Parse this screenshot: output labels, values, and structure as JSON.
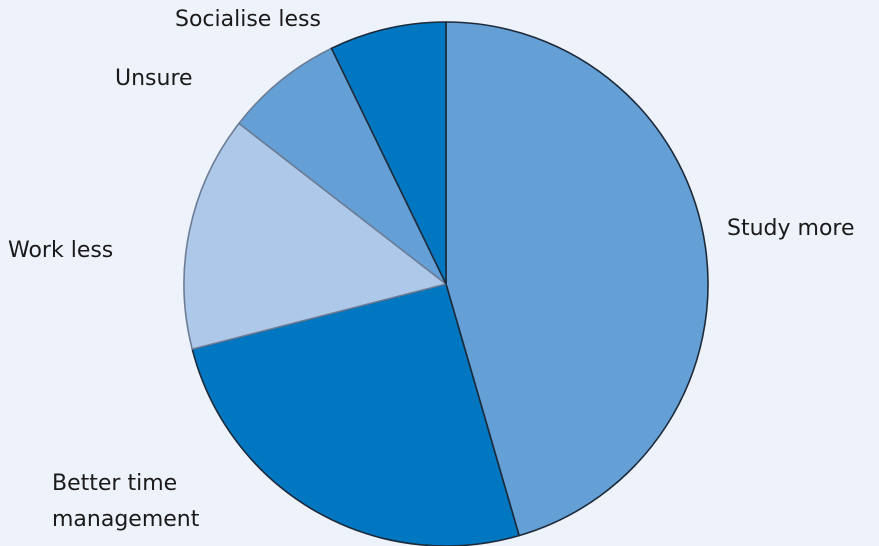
{
  "chart_data": {
    "type": "pie",
    "title": "",
    "start_angle_deg": 0,
    "direction": "clockwise",
    "legend": "none",
    "slices": [
      {
        "label": "Study more",
        "value": 45.5,
        "color": "#64a0d6"
      },
      {
        "label": "Better time management",
        "value": 25.5,
        "color": "#0077c0"
      },
      {
        "label": "Work less",
        "value": 14.5,
        "color": "#aec8e9"
      },
      {
        "label": "Unsure",
        "value": 7.3,
        "color": "#64a0d6"
      },
      {
        "label": "Socialise less",
        "value": 7.2,
        "color": "#0077c0"
      }
    ]
  }
}
